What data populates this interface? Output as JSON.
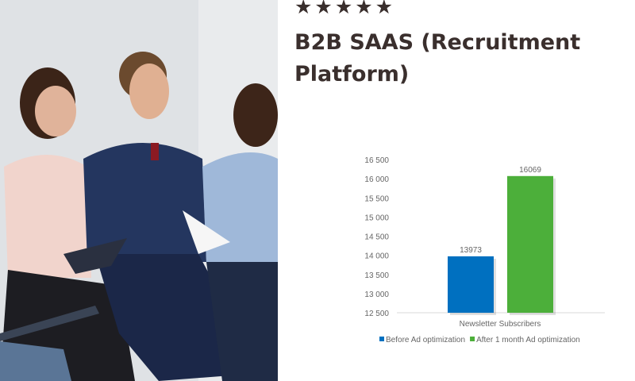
{
  "rating": {
    "stars": 5,
    "glyph": "★★★★★"
  },
  "title": "B2B SAAS (Recruitment Platform)",
  "chart_data": {
    "type": "bar",
    "categories": [
      "Newsletter Subscribers"
    ],
    "series": [
      {
        "name": "Before Ad optimization",
        "values": [
          13973
        ],
        "color": "#0070c0"
      },
      {
        "name": "After 1 month Ad optimization",
        "values": [
          16069
        ],
        "color": "#4caf3a"
      }
    ],
    "ylim": [
      12500,
      16500
    ],
    "yticks": [
      12500,
      13000,
      13500,
      14000,
      14500,
      15000,
      15500,
      16000,
      16500
    ],
    "ytick_labels": [
      "12 500",
      "13 000",
      "13 500",
      "14 000",
      "14 500",
      "15 000",
      "15 500",
      "16 000",
      "16 500"
    ],
    "data_labels": [
      "13973",
      "16069"
    ],
    "grid": false,
    "legend": "bottom"
  }
}
